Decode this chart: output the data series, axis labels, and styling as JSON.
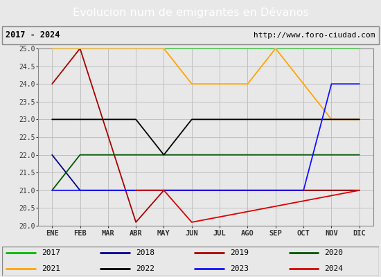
{
  "title": "Evolucion num de emigrantes en Dévanos",
  "subtitle_left": "2017 - 2024",
  "subtitle_right": "http://www.foro-ciudad.com",
  "months": [
    "ENE",
    "FEB",
    "MAR",
    "ABR",
    "MAY",
    "JUN",
    "JUL",
    "AGO",
    "SEP",
    "OCT",
    "NOV",
    "DIC"
  ],
  "month_indices": [
    1,
    2,
    3,
    4,
    5,
    6,
    7,
    8,
    9,
    10,
    11,
    12
  ],
  "ylim": [
    20.0,
    25.0
  ],
  "yticks": [
    20.0,
    20.5,
    21.0,
    21.5,
    22.0,
    22.5,
    23.0,
    23.5,
    24.0,
    24.5,
    25.0
  ],
  "series": {
    "2017": {
      "color": "#00bb00",
      "data": [
        [
          1,
          25
        ],
        [
          12,
          25
        ]
      ]
    },
    "2018": {
      "color": "#00008b",
      "data": [
        [
          1,
          22
        ],
        [
          2,
          21
        ],
        [
          12,
          21
        ]
      ]
    },
    "2019": {
      "color": "#aa0000",
      "data": [
        [
          1,
          24
        ],
        [
          2,
          25
        ],
        [
          4,
          20.1
        ],
        [
          5,
          21
        ],
        [
          12,
          21
        ]
      ]
    },
    "2020": {
      "color": "#005500",
      "data": [
        [
          1,
          21
        ],
        [
          2,
          22
        ],
        [
          12,
          22
        ]
      ]
    },
    "2021": {
      "color": "#ffa500",
      "data": [
        [
          1,
          25
        ],
        [
          5,
          25
        ],
        [
          6,
          24
        ],
        [
          7,
          24
        ],
        [
          8,
          24
        ],
        [
          9,
          25
        ],
        [
          10,
          24
        ],
        [
          11,
          23
        ],
        [
          12,
          23
        ]
      ]
    },
    "2022": {
      "color": "#000000",
      "data": [
        [
          1,
          23
        ],
        [
          4,
          23
        ],
        [
          5,
          22
        ],
        [
          6,
          23
        ],
        [
          12,
          23
        ]
      ]
    },
    "2023": {
      "color": "#1111ff",
      "data": [
        [
          1,
          21
        ],
        [
          10,
          21
        ],
        [
          11,
          24
        ],
        [
          12,
          24
        ]
      ]
    },
    "2024": {
      "color": "#dd0000",
      "data": [
        [
          4,
          21
        ],
        [
          5,
          21
        ],
        [
          6,
          20.1
        ],
        [
          12,
          21
        ]
      ]
    }
  },
  "legend_order": [
    "2017",
    "2018",
    "2019",
    "2020",
    "2021",
    "2022",
    "2023",
    "2024"
  ],
  "bg_color": "#e8e8e8",
  "plot_bg_color": "#e8e8e8",
  "title_bg_color": "#5588cc",
  "title_text_color": "#ffffff",
  "grid_color": "#c0c0c0",
  "border_color": "#888888"
}
